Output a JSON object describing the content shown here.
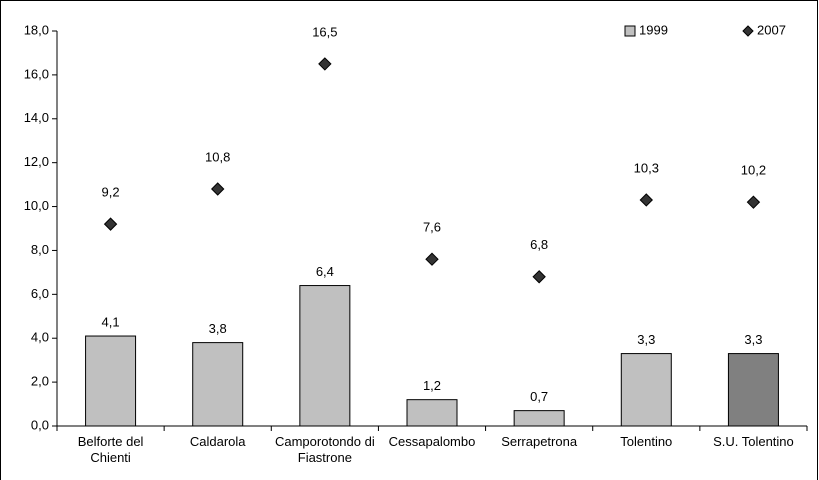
{
  "chart_data": {
    "type": "bar",
    "categories": [
      "Belforte del Chienti",
      "Caldarola",
      "Camporotondo di Fiastrone",
      "Cessapalombo",
      "Serrapetrona",
      "Tolentino",
      "S.U. Tolentino"
    ],
    "series": [
      {
        "name": "1999",
        "type": "bar",
        "color": "#c0c0c0",
        "colors": [
          "#c0c0c0",
          "#c0c0c0",
          "#c0c0c0",
          "#c0c0c0",
          "#c0c0c0",
          "#c0c0c0",
          "#808080"
        ],
        "values": [
          4.1,
          3.8,
          6.4,
          1.2,
          0.7,
          3.3,
          3.3
        ],
        "value_labels": [
          "4,1",
          "3,8",
          "6,4",
          "1,2",
          "0,7",
          "3,3",
          "3,3"
        ]
      },
      {
        "name": "2007",
        "type": "scatter",
        "color": "#333333",
        "values": [
          9.2,
          10.8,
          16.5,
          7.6,
          6.8,
          10.3,
          10.2
        ],
        "value_labels": [
          "9,2",
          "10,8",
          "16,5",
          "7,6",
          "6,8",
          "10,3",
          "10,2"
        ]
      }
    ],
    "ylim": [
      0,
      18
    ],
    "yticks": [
      {
        "value": 0,
        "label": "0,0"
      },
      {
        "value": 2,
        "label": "2,0"
      },
      {
        "value": 4,
        "label": "4,0"
      },
      {
        "value": 6,
        "label": "6,0"
      },
      {
        "value": 8,
        "label": "8,0"
      },
      {
        "value": 10,
        "label": "10,0"
      },
      {
        "value": 12,
        "label": "12,0"
      },
      {
        "value": 14,
        "label": "14,0"
      },
      {
        "value": 16,
        "label": "16,0"
      },
      {
        "value": 18,
        "label": "18,0"
      }
    ],
    "grid": false,
    "legend": "top-right"
  }
}
